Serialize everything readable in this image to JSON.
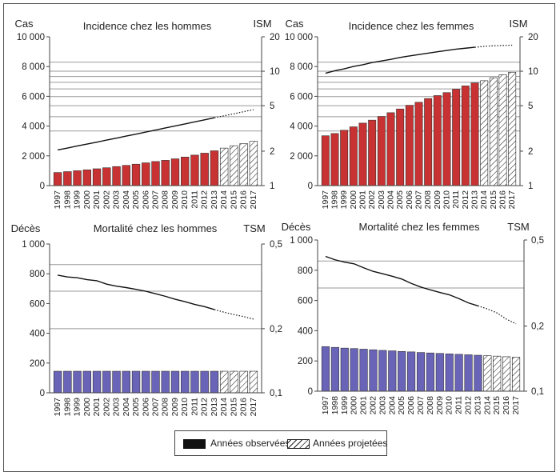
{
  "colors": {
    "male_bar": "#c83232",
    "female_mortality_bar": "#6a64b8",
    "projected_fill": "#ffffff",
    "line": "#111111",
    "grid": "#9a9a9a",
    "axis": "#444444"
  },
  "legend": {
    "observed_label": "Années observées",
    "projected_label": "Années projetées"
  },
  "chart_data": [
    {
      "id": "inc_h",
      "type": "bar",
      "title": "Incidence chez les hommes",
      "left_axis_label": "Cas",
      "right_axis_label": "ISM",
      "color": "#c83232",
      "categories": [
        "1997",
        "1998",
        "1999",
        "2000",
        "2001",
        "2002",
        "2003",
        "2004",
        "2005",
        "2006",
        "2007",
        "2008",
        "2009",
        "2010",
        "2011",
        "2012",
        "2013",
        "2014",
        "2015",
        "2016",
        "2017"
      ],
      "projected_from": "2014",
      "values": [
        880,
        940,
        1000,
        1060,
        1130,
        1200,
        1280,
        1360,
        1440,
        1530,
        1620,
        1700,
        1800,
        1920,
        2050,
        2180,
        2340,
        2520,
        2680,
        2820,
        2980
      ],
      "left_ylim": [
        0,
        10000
      ],
      "left_ticks": [
        0,
        2000,
        4000,
        6000,
        8000,
        10000
      ],
      "left_tick_labels": [
        "0",
        "2 000",
        "4 000",
        "6 000",
        "8 000",
        "10 000"
      ],
      "right_scale": "log",
      "right_ylim": [
        1,
        20
      ],
      "right_ticks": [
        1,
        2,
        5,
        10,
        20
      ],
      "right_tick_labels": [
        "1",
        "2",
        "5",
        "10",
        "20"
      ],
      "right_grid": [
        3,
        4,
        5,
        6,
        7,
        8,
        9,
        10,
        12
      ],
      "right_line": [
        2.05,
        2.13,
        2.22,
        2.31,
        2.4,
        2.5,
        2.6,
        2.71,
        2.82,
        2.94,
        3.06,
        3.19,
        3.32,
        3.46,
        3.61,
        3.76,
        3.92,
        4.08,
        4.25,
        4.43,
        4.62
      ]
    },
    {
      "id": "inc_f",
      "type": "bar",
      "title": "Incidence chez les femmes",
      "left_axis_label": "Cas",
      "right_axis_label": "ISM",
      "color": "#c83232",
      "categories": [
        "1997",
        "1998",
        "1999",
        "2000",
        "2001",
        "2002",
        "2003",
        "2004",
        "2005",
        "2006",
        "2007",
        "2008",
        "2009",
        "2010",
        "2011",
        "2012",
        "2013",
        "2014",
        "2015",
        "2016",
        "2017"
      ],
      "projected_from": "2014",
      "values": [
        3350,
        3500,
        3720,
        3950,
        4200,
        4400,
        4650,
        4900,
        5150,
        5400,
        5600,
        5850,
        6050,
        6250,
        6480,
        6700,
        6900,
        7050,
        7250,
        7450,
        7620
      ],
      "left_ylim": [
        0,
        10000
      ],
      "left_ticks": [
        0,
        2000,
        4000,
        6000,
        8000,
        10000
      ],
      "left_tick_labels": [
        "0",
        "2 000",
        "4 000",
        "6 000",
        "8 000",
        "10 000"
      ],
      "right_scale": "log",
      "right_ylim": [
        1,
        20
      ],
      "right_ticks": [
        1,
        2,
        5,
        10,
        20
      ],
      "right_tick_labels": [
        "1",
        "2",
        "5",
        "10",
        "20"
      ],
      "right_grid": [
        3,
        4,
        5,
        6,
        7,
        8,
        9,
        10,
        12
      ],
      "right_line": [
        9.6,
        10.1,
        10.5,
        11.0,
        11.4,
        11.9,
        12.3,
        12.7,
        13.2,
        13.6,
        14.0,
        14.4,
        14.8,
        15.2,
        15.6,
        15.9,
        16.2,
        16.5,
        16.7,
        16.8,
        16.9
      ]
    },
    {
      "id": "mort_h",
      "type": "bar",
      "title": "Mortalité chez les hommes",
      "left_axis_label": "Décès",
      "right_axis_label": "TSM",
      "color": "#6a64b8",
      "categories": [
        "1997",
        "1998",
        "1999",
        "2000",
        "2001",
        "2002",
        "2003",
        "2004",
        "2005",
        "2006",
        "2007",
        "2008",
        "2009",
        "2010",
        "2011",
        "2012",
        "2013",
        "2014",
        "2015",
        "2016",
        "2017"
      ],
      "projected_from": "2014",
      "values": [
        145,
        145,
        145,
        145,
        145,
        145,
        145,
        145,
        145,
        145,
        145,
        145,
        145,
        145,
        145,
        145,
        145,
        145,
        145,
        145,
        145
      ],
      "left_ylim": [
        0,
        1000
      ],
      "left_ticks": [
        0,
        200,
        400,
        600,
        800,
        1000
      ],
      "left_tick_labels": [
        "0",
        "200",
        "400",
        "600",
        "800",
        "1 000"
      ],
      "right_scale": "log",
      "right_ylim": [
        0.1,
        0.5
      ],
      "right_ticks": [
        0.1,
        0.2,
        0.5
      ],
      "right_tick_labels": [
        "0,1",
        "0,2",
        "0,5"
      ],
      "right_grid": [
        0.2,
        0.3,
        0.4
      ],
      "right_line": [
        0.357,
        0.35,
        0.347,
        0.34,
        0.336,
        0.324,
        0.317,
        0.312,
        0.306,
        0.3,
        0.292,
        0.284,
        0.275,
        0.268,
        0.26,
        0.254,
        0.246,
        0.239,
        0.233,
        0.228,
        0.222
      ]
    },
    {
      "id": "mort_f",
      "type": "bar",
      "title": "Mortalité chez les femmes",
      "left_axis_label": "Décès",
      "right_axis_label": "TSM",
      "color": "#6a64b8",
      "categories": [
        "1997",
        "1998",
        "1999",
        "2000",
        "2001",
        "2002",
        "2003",
        "2004",
        "2005",
        "2006",
        "2007",
        "2008",
        "2009",
        "2010",
        "2011",
        "2012",
        "2013",
        "2014",
        "2015",
        "2016",
        "2017"
      ],
      "projected_from": "2014",
      "values": [
        295,
        290,
        285,
        282,
        278,
        274,
        270,
        267,
        263,
        260,
        256,
        253,
        250,
        247,
        244,
        241,
        238,
        235,
        232,
        228,
        225
      ],
      "left_ylim": [
        0,
        1000
      ],
      "left_ticks": [
        0,
        200,
        400,
        600,
        800,
        1000
      ],
      "left_tick_labels": [
        "0",
        "200",
        "400",
        "600",
        "800",
        "1 000"
      ],
      "right_scale": "log",
      "right_ylim": [
        0.1,
        0.5
      ],
      "right_ticks": [
        0.1,
        0.2,
        0.5
      ],
      "right_tick_labels": [
        "0,1",
        "0,2",
        "0,5"
      ],
      "right_grid": [
        0.3,
        0.4
      ],
      "right_line": [
        0.42,
        0.405,
        0.395,
        0.388,
        0.372,
        0.358,
        0.349,
        0.34,
        0.33,
        0.315,
        0.303,
        0.294,
        0.286,
        0.279,
        0.268,
        0.256,
        0.248,
        0.24,
        0.23,
        0.215,
        0.205
      ]
    }
  ]
}
